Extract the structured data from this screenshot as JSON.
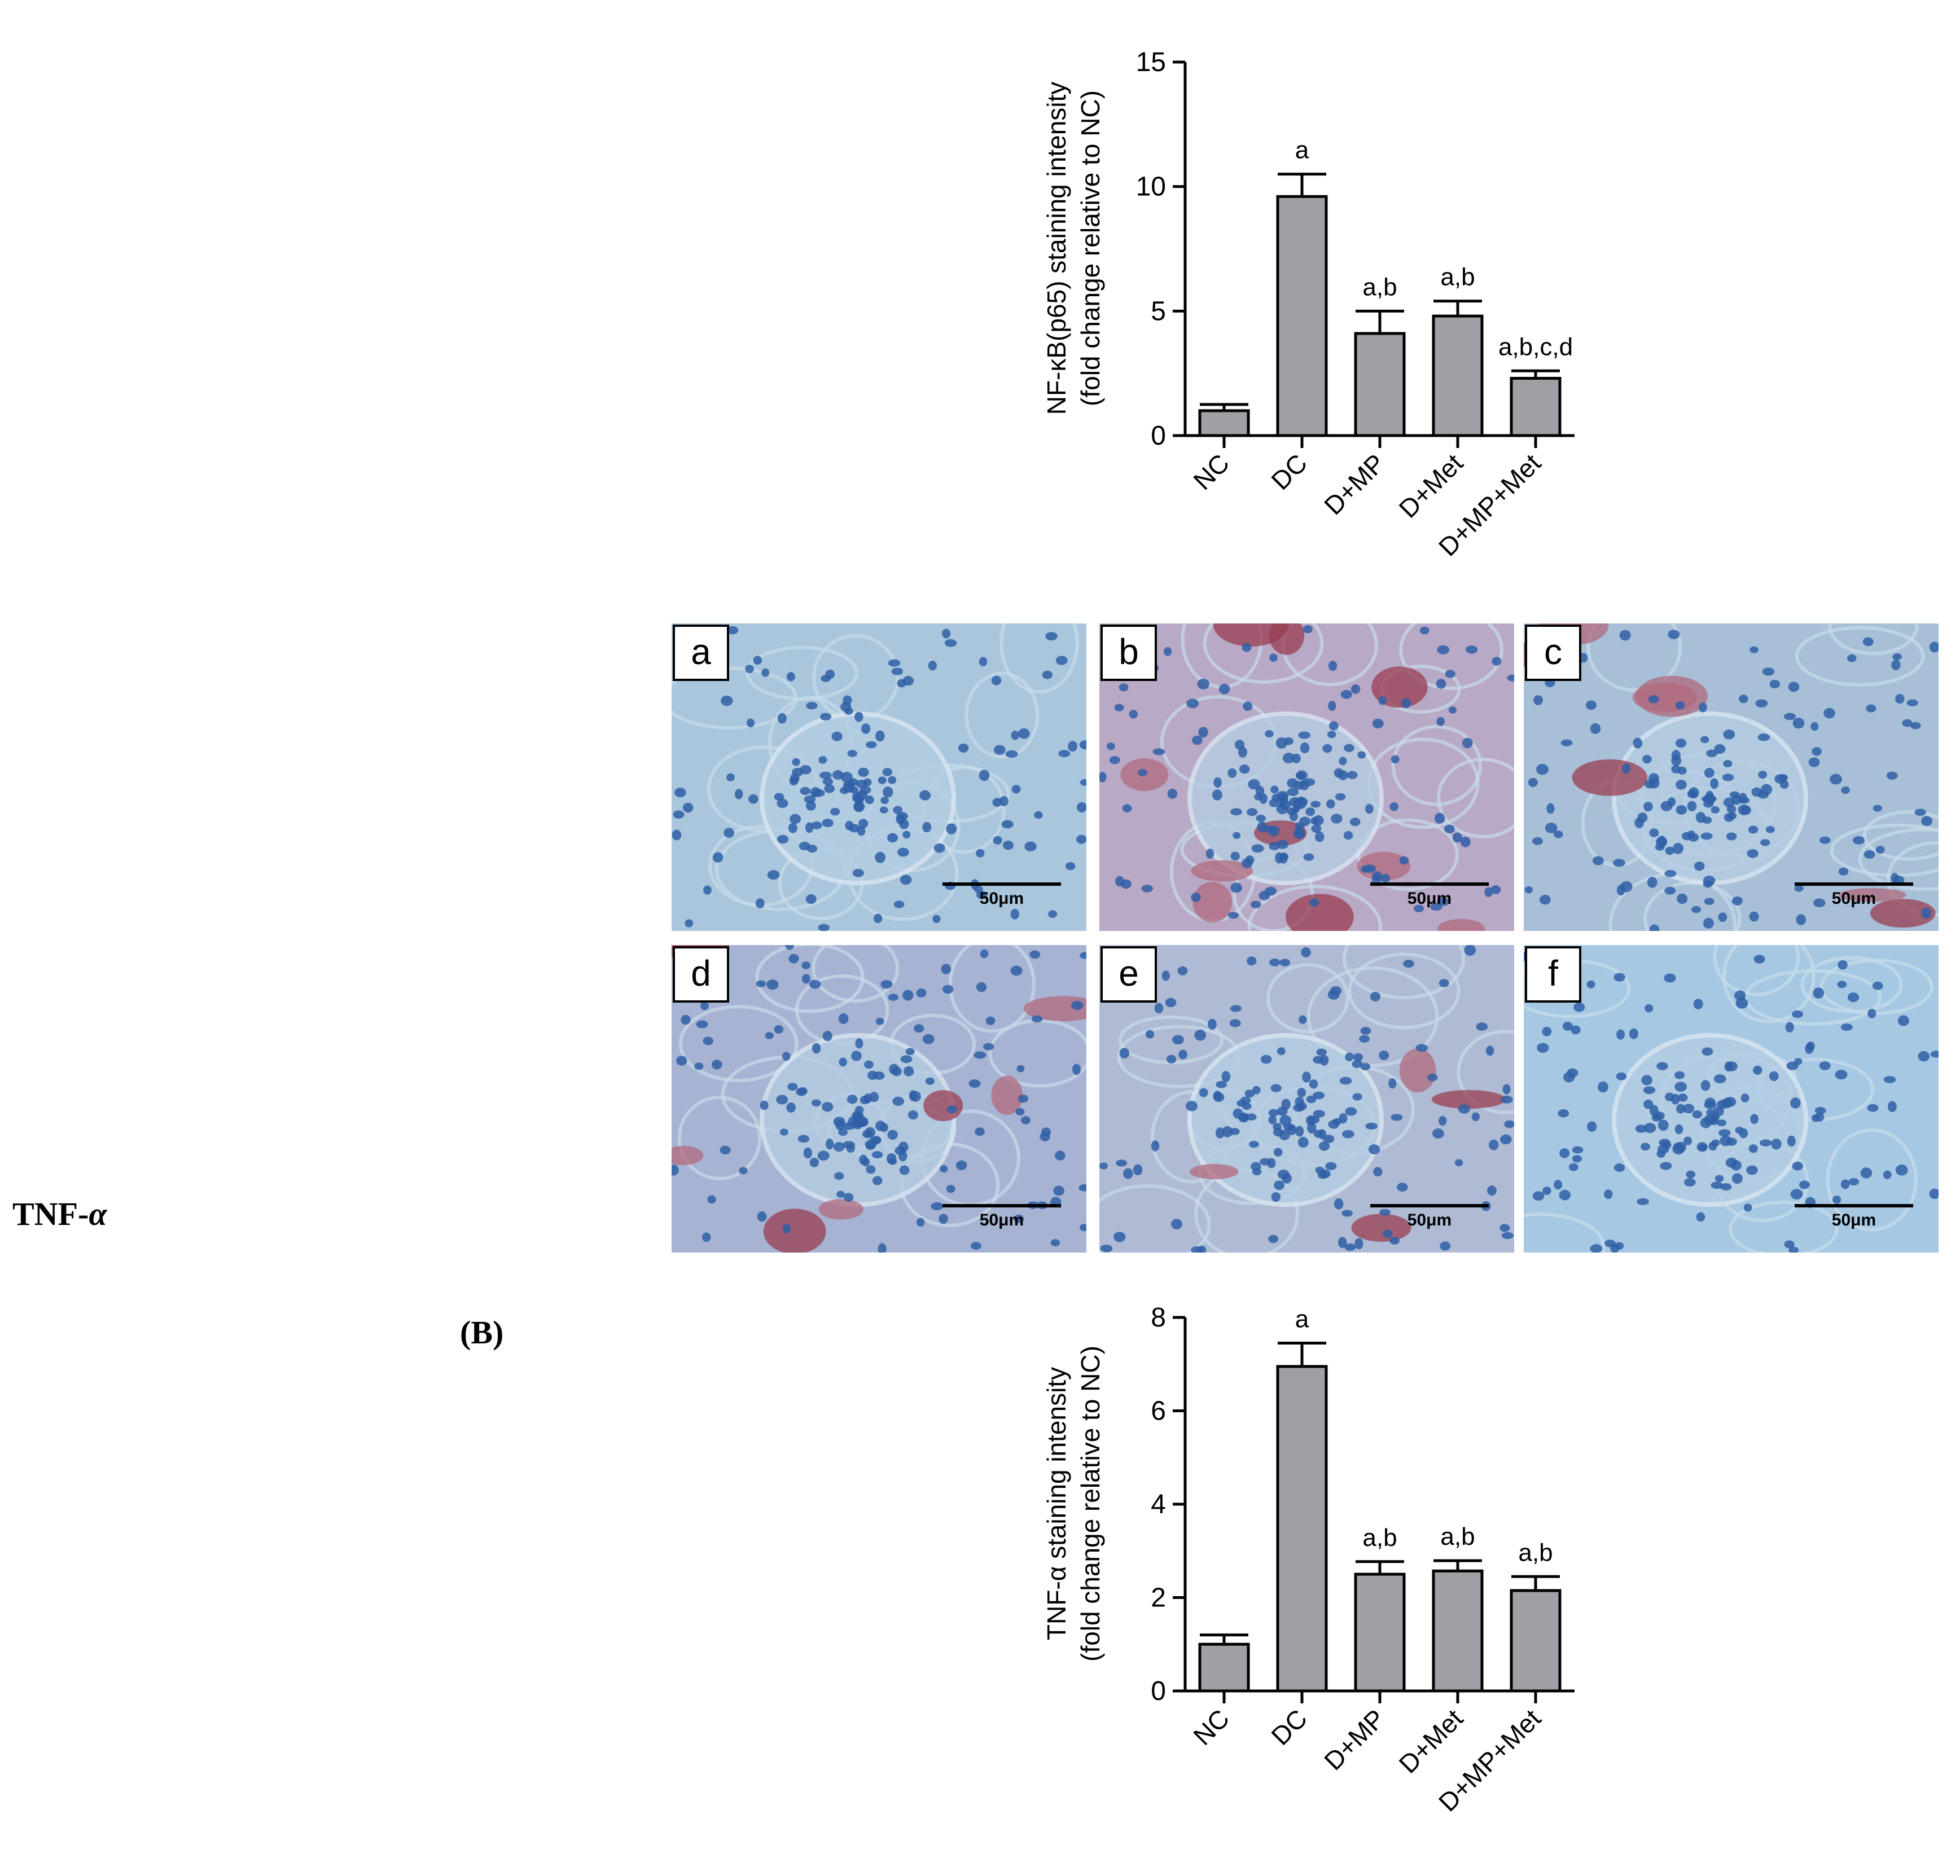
{
  "figure": {
    "row_label": "TNF-",
    "row_label_symbol": "α",
    "panel_label_open": "(",
    "panel_label": "B",
    "panel_label_close": ")"
  },
  "micrographs": [
    {
      "letter": "a",
      "scale": "50μm",
      "stain": "none",
      "bg": "#a9c6dd"
    },
    {
      "letter": "b",
      "scale": "50μm",
      "stain": "strong",
      "bg": "#b8a9c6"
    },
    {
      "letter": "c",
      "scale": "50μm",
      "stain": "moderate",
      "bg": "#a8bfd8"
    },
    {
      "letter": "d",
      "scale": "50μm",
      "stain": "moderate",
      "bg": "#a7b3d2"
    },
    {
      "letter": "e",
      "scale": "50μm",
      "stain": "mild",
      "bg": "#afbad4"
    },
    {
      "letter": "f",
      "scale": "50μm",
      "stain": "none",
      "bg": "#a6c8e3"
    }
  ],
  "chart_data": [
    {
      "type": "bar",
      "ylabel_line1": "NF-κB(p65) staining intensity",
      "ylabel_line2": "(fold change relative to NC)",
      "categories": [
        "NC",
        "DC",
        "D+MP",
        "D+Met",
        "D+MP+Met"
      ],
      "values": [
        1.0,
        9.6,
        4.1,
        4.8,
        2.3
      ],
      "errors": [
        0.25,
        0.9,
        0.9,
        0.6,
        0.3
      ],
      "annotations": [
        "",
        "a",
        "a,b",
        "a,b",
        "a,b,c,d"
      ],
      "yticks": [
        0,
        5,
        10,
        15
      ],
      "ylim": [
        0,
        15
      ],
      "bar_color": "#a09fa6"
    },
    {
      "type": "bar",
      "ylabel_line1": "TNF-α staining intensity",
      "ylabel_line2": "(fold change relative to NC)",
      "categories": [
        "NC",
        "DC",
        "D+MP",
        "D+Met",
        "D+MP+Met"
      ],
      "values": [
        1.0,
        6.95,
        2.5,
        2.57,
        2.15
      ],
      "errors": [
        0.2,
        0.5,
        0.27,
        0.22,
        0.3
      ],
      "annotations": [
        "",
        "a",
        "a,b",
        "a,b",
        "a,b"
      ],
      "yticks": [
        0,
        2,
        4,
        6,
        8
      ],
      "ylim": [
        0,
        8
      ],
      "bar_color": "#a09fa6"
    }
  ]
}
